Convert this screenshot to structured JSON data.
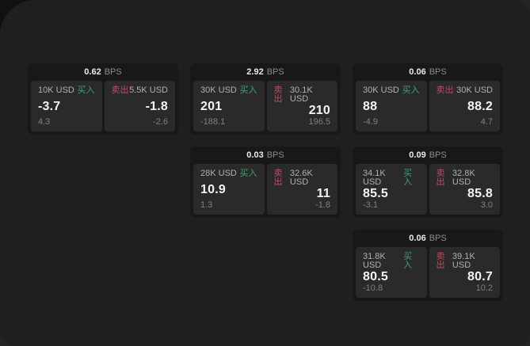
{
  "labels": {
    "buy": "买入",
    "sell": "卖出",
    "bps_unit": "BPS"
  },
  "colors": {
    "buy_green": "#3ca46a",
    "sell_red": "#c04a5f",
    "window_bg": "#1f1f1f",
    "card_bg": "#181818",
    "panel_bg": "#2a2a2a"
  },
  "cards": [
    {
      "bps": "0.62",
      "buy": {
        "amount": "10K USD",
        "price": "-3.7",
        "change": "4.3"
      },
      "sell": {
        "amount": "5.5K USD",
        "price": "-1.8",
        "change": "-2.6"
      }
    },
    {
      "bps": "2.92",
      "buy": {
        "amount": "30K USD",
        "price": "201",
        "change": "-188.1"
      },
      "sell": {
        "amount": "30.1K USD",
        "price": "210",
        "change": "196.5"
      }
    },
    {
      "bps": "0.06",
      "buy": {
        "amount": "30K USD",
        "price": "88",
        "change": "-4.9"
      },
      "sell": {
        "amount": "30K USD",
        "price": "88.2",
        "change": "4.7"
      }
    },
    {
      "bps": "0.03",
      "buy": {
        "amount": "28K USD",
        "price": "10.9",
        "change": "1.3"
      },
      "sell": {
        "amount": "32.6K USD",
        "price": "11",
        "change": "-1.8"
      }
    },
    {
      "bps": "0.09",
      "buy": {
        "amount": "34.1K USD",
        "price": "85.5",
        "change": "-3.1"
      },
      "sell": {
        "amount": "32.8K USD",
        "price": "85.8",
        "change": "3.0"
      }
    },
    {
      "bps": "0.06",
      "buy": {
        "amount": "31.8K USD",
        "price": "80.5",
        "change": "-10.8"
      },
      "sell": {
        "amount": "39.1K USD",
        "price": "80.7",
        "change": "10.2"
      }
    }
  ]
}
